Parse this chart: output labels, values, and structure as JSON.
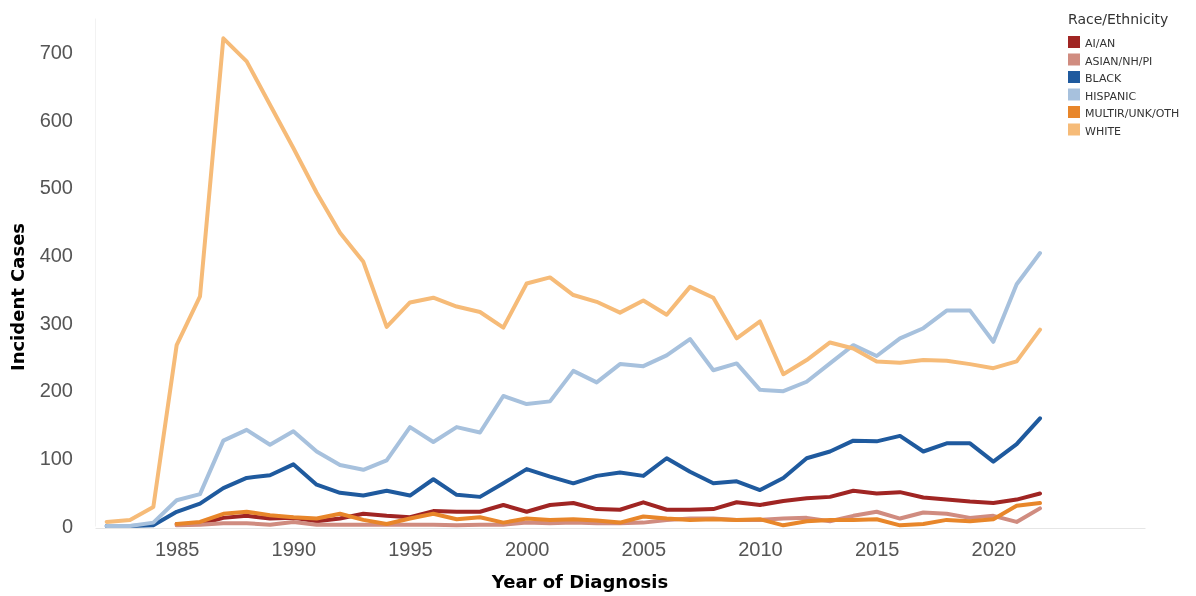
{
  "chart_data": {
    "type": "line",
    "xlabel": "Year of Diagnosis",
    "ylabel": "Incident Cases",
    "legend_title": "Race/Ethnicity",
    "legend": "top right",
    "line_style": "solid",
    "x": [
      1982,
      1983,
      1984,
      1985,
      1986,
      1987,
      1988,
      1989,
      1990,
      1991,
      1992,
      1993,
      1994,
      1995,
      1996,
      1997,
      1998,
      1999,
      2000,
      2001,
      2002,
      2003,
      2004,
      2005,
      2006,
      2007,
      2008,
      2009,
      2010,
      2011,
      2012,
      2013,
      2014,
      2015,
      2016,
      2017,
      2018,
      2019,
      2020,
      2021,
      2022
    ],
    "xlim": [
      1981.5,
      2026.5
    ],
    "xticks": [
      1985,
      1990,
      1995,
      2000,
      2005,
      2010,
      2015,
      2020
    ],
    "ylim": [
      0,
      750
    ],
    "yticks": [
      0,
      100,
      200,
      300,
      400,
      500,
      600,
      700
    ],
    "series": [
      {
        "name": "AI/AN",
        "color": "#a02523",
        "values": [
          null,
          null,
          null,
          3,
          3,
          12,
          15,
          11,
          12,
          7,
          11,
          18,
          15,
          13,
          22,
          21,
          21,
          31,
          21,
          31,
          34,
          25,
          24,
          35,
          24,
          24,
          25,
          35,
          31,
          37,
          41,
          43,
          52,
          48,
          50,
          42,
          39,
          36,
          34,
          39,
          48
        ]
      },
      {
        "name": "ASIAN/NH/PI",
        "color": "#d08c80",
        "values": [
          null,
          null,
          null,
          1,
          2,
          4,
          4,
          2,
          6,
          2,
          2,
          2,
          2,
          2,
          2,
          1,
          2,
          2,
          5,
          4,
          5,
          4,
          4,
          5,
          9,
          11,
          11,
          9,
          9,
          11,
          12,
          7,
          15,
          21,
          11,
          20,
          18,
          12,
          15,
          6,
          26
        ]
      },
      {
        "name": "BLACK",
        "color": "#1f5a9e",
        "values": [
          0,
          0,
          1,
          21,
          33,
          56,
          71,
          75,
          91,
          61,
          49,
          45,
          52,
          45,
          69,
          46,
          43,
          63,
          84,
          73,
          63,
          74,
          79,
          74,
          100,
          80,
          63,
          66,
          53,
          71,
          100,
          110,
          126,
          125,
          133,
          110,
          122,
          122,
          95,
          121,
          159
        ]
      },
      {
        "name": "HISPANIC",
        "color": "#a7c1dd",
        "values": [
          0,
          0,
          5,
          38,
          47,
          126,
          142,
          120,
          140,
          110,
          90,
          83,
          97,
          146,
          124,
          146,
          138,
          192,
          180,
          184,
          229,
          212,
          239,
          236,
          252,
          276,
          230,
          240,
          201,
          199,
          213,
          240,
          267,
          251,
          277,
          292,
          318,
          318,
          272,
          357,
          403
        ]
      },
      {
        "name": "MULTIR/UNK/OTH",
        "color": "#e8862a",
        "values": [
          null,
          null,
          null,
          3,
          6,
          18,
          21,
          16,
          13,
          11,
          18,
          9,
          3,
          11,
          18,
          10,
          13,
          5,
          11,
          9,
          10,
          8,
          5,
          14,
          11,
          9,
          10,
          9,
          10,
          1,
          7,
          9,
          9,
          10,
          1,
          3,
          9,
          7,
          10,
          30,
          34
        ]
      },
      {
        "name": "WHITE",
        "color": "#f6bb78",
        "values": [
          6,
          9,
          28,
          267,
          339,
          720,
          686,
          622,
          558,
          492,
          433,
          390,
          294,
          330,
          337,
          324,
          316,
          293,
          358,
          367,
          341,
          331,
          315,
          333,
          312,
          353,
          337,
          277,
          302,
          224,
          245,
          271,
          262,
          243,
          241,
          245,
          244,
          239,
          233,
          243,
          290
        ]
      }
    ]
  }
}
